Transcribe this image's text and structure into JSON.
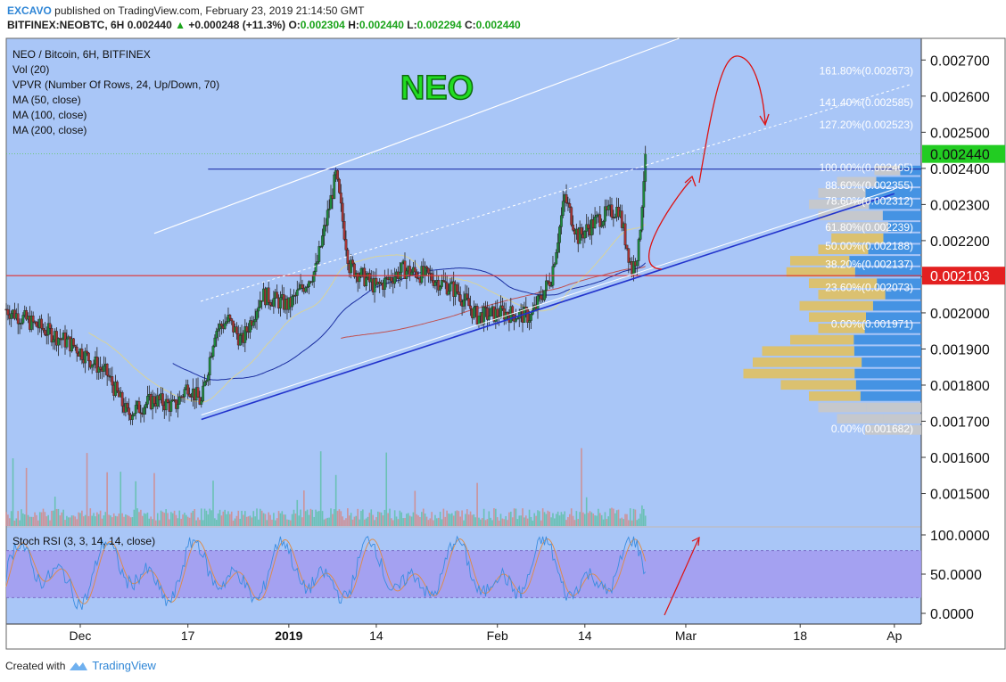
{
  "header": {
    "author": "EXCAVO",
    "published": "published on TradingView.com, February 23, 2019 21:14:50 GMT",
    "symbol": "BITFINEX:NEOBTC, 6H",
    "last": "0.002440",
    "arrow": "▲",
    "change": "+0.000248 (+11.3%)",
    "o_label": "O:",
    "o": "0.002304",
    "h_label": "H:",
    "h": "0.002440",
    "l_label": "L:",
    "l": "0.002294",
    "c_label": "C:",
    "c": "0.002440"
  },
  "legend": {
    "title": "NEO / Bitcoin, 6H, BITFINEX",
    "vol": "Vol (20)",
    "vpvr": "VPVR (Number Of Rows, 24, Up/Down, 70)",
    "ma50": "MA (50, close)",
    "ma100": "MA (100, close)",
    "ma200": "MA (200, close)",
    "stoch": "Stoch RSI (3, 3, 14, 14, close)"
  },
  "footer": {
    "created_with": "Created with",
    "brand": "TradingView"
  },
  "chart_data": {
    "type": "candlestick",
    "watermark": "NEO",
    "colors": {
      "background": "#a9c6f7",
      "up": "#1e8a3e",
      "down": "#a83434",
      "ma50": "#d8d39a",
      "ma100": "#1b2ea0",
      "ma200": "#c05050",
      "channel": "#2233cc",
      "resistance": "#2233aa",
      "support": "#e03030",
      "annotation": "#dd1111",
      "price_tag_current": "#22cc22",
      "price_tag_support": "#e32020",
      "vpvr_up": "#3a8de0",
      "vpvr_down": "#e0c060",
      "vpvr_neutral": "#c8c8c8",
      "stoch_band": "#a39af0",
      "stoch_k": "#3a8de0",
      "stoch_d": "#e08a40"
    },
    "ylim": [
      0.00141,
      0.00276
    ],
    "y_ticks": [
      "0.001500",
      "0.001600",
      "0.001700",
      "0.001800",
      "0.001900",
      "0.002000",
      "0.002100",
      "0.002200",
      "0.002300",
      "0.002400",
      "0.002500",
      "0.002600",
      "0.002700"
    ],
    "x_ticks": [
      {
        "label": "Dec",
        "date": "2018-12-01"
      },
      {
        "label": "17",
        "date": "2018-12-17"
      },
      {
        "label": "2019",
        "date": "2019-01-01",
        "bold": true
      },
      {
        "label": "14",
        "date": "2019-01-14"
      },
      {
        "label": "Feb",
        "date": "2019-02-01"
      },
      {
        "label": "14",
        "date": "2019-02-14"
      },
      {
        "label": "Mar",
        "date": "2019-03-01"
      },
      {
        "label": "18",
        "date": "2019-03-18"
      },
      {
        "label": "Ap",
        "date": "2019-04-01"
      }
    ],
    "price_tags": [
      {
        "price": 0.00244,
        "label": "0.002440",
        "kind": "current"
      },
      {
        "price": 0.002103,
        "label": "0.002103",
        "kind": "support"
      }
    ],
    "horizontal_levels": [
      {
        "price": 0.002398,
        "from": "2018-12-20",
        "to": "2019-04-05",
        "kind": "resistance"
      },
      {
        "price": 0.002103,
        "from": "2018-11-20",
        "to": "2019-04-05",
        "kind": "support"
      }
    ],
    "trendlines": [
      {
        "from": {
          "date": "2018-12-19",
          "price": 0.001705
        },
        "to": {
          "date": "2019-04-01",
          "price": 0.00233
        },
        "kind": "channel-bottom"
      },
      {
        "from": {
          "date": "2018-12-12",
          "price": 0.00222
        },
        "to": {
          "date": "2019-02-28",
          "price": 0.00276
        },
        "kind": "channel-top"
      }
    ],
    "fibonacci_upper": [
      {
        "label": "161.80%(0.002673)",
        "price": 0.002673
      },
      {
        "label": "141.40%(0.002585)",
        "price": 0.002585
      },
      {
        "label": "127.20%(0.002523)",
        "price": 0.002523
      },
      {
        "label": "100.00%(0.002405)",
        "price": 0.002405
      },
      {
        "label": "88.60%(0.002355)",
        "price": 0.002355
      },
      {
        "label": "78.60%(0.002312)",
        "price": 0.002312
      },
      {
        "label": "61.80%(0.002239)",
        "price": 0.002239
      },
      {
        "label": "50.00%(0.002188)",
        "price": 0.002188
      },
      {
        "label": "38.20%(0.002137)",
        "price": 0.002137
      },
      {
        "label": "23.60%(0.002073)",
        "price": 0.002073
      },
      {
        "label": "0.00%(0.001971)",
        "price": 0.001971
      }
    ],
    "fibonacci_lower": [
      {
        "label": "0.00%(0.001682)",
        "price": 0.001682
      }
    ],
    "stoch_ticks": [
      "100.0000",
      "50.0000",
      "0.0000"
    ],
    "stoch_band": [
      20,
      80
    ],
    "price_series": {
      "start_date": "2018-11-20",
      "interval_hours": 6,
      "note": "approximate close-price path sampled every 6H, read from chart",
      "anchor_closes": [
        {
          "date": "2018-11-20",
          "close": 0.00201
        },
        {
          "date": "2018-11-25",
          "close": 0.00196
        },
        {
          "date": "2018-11-30",
          "close": 0.00191
        },
        {
          "date": "2018-12-05",
          "close": 0.00183
        },
        {
          "date": "2018-12-08",
          "close": 0.00172
        },
        {
          "date": "2018-12-12",
          "close": 0.00176
        },
        {
          "date": "2018-12-15",
          "close": 0.00174
        },
        {
          "date": "2018-12-17",
          "close": 0.0018
        },
        {
          "date": "2018-12-19",
          "close": 0.00175
        },
        {
          "date": "2018-12-21",
          "close": 0.00195
        },
        {
          "date": "2018-12-23",
          "close": 0.00198
        },
        {
          "date": "2018-12-25",
          "close": 0.00192
        },
        {
          "date": "2018-12-28",
          "close": 0.00205
        },
        {
          "date": "2019-01-01",
          "close": 0.00202
        },
        {
          "date": "2019-01-05",
          "close": 0.00212
        },
        {
          "date": "2019-01-08",
          "close": 0.00238
        },
        {
          "date": "2019-01-10",
          "close": 0.00213
        },
        {
          "date": "2019-01-14",
          "close": 0.00207
        },
        {
          "date": "2019-01-18",
          "close": 0.00212
        },
        {
          "date": "2019-01-22",
          "close": 0.0021
        },
        {
          "date": "2019-01-26",
          "close": 0.00206
        },
        {
          "date": "2019-01-29",
          "close": 0.00199
        },
        {
          "date": "2019-02-02",
          "close": 0.002
        },
        {
          "date": "2019-02-06",
          "close": 0.00199
        },
        {
          "date": "2019-02-09",
          "close": 0.0021
        },
        {
          "date": "2019-02-11",
          "close": 0.00232
        },
        {
          "date": "2019-02-13",
          "close": 0.00221
        },
        {
          "date": "2019-02-16",
          "close": 0.00226
        },
        {
          "date": "2019-02-19",
          "close": 0.00229
        },
        {
          "date": "2019-02-21",
          "close": 0.00212
        },
        {
          "date": "2019-02-22",
          "close": 0.00218
        },
        {
          "date": "2019-02-23",
          "close": 0.00244
        }
      ]
    }
  }
}
